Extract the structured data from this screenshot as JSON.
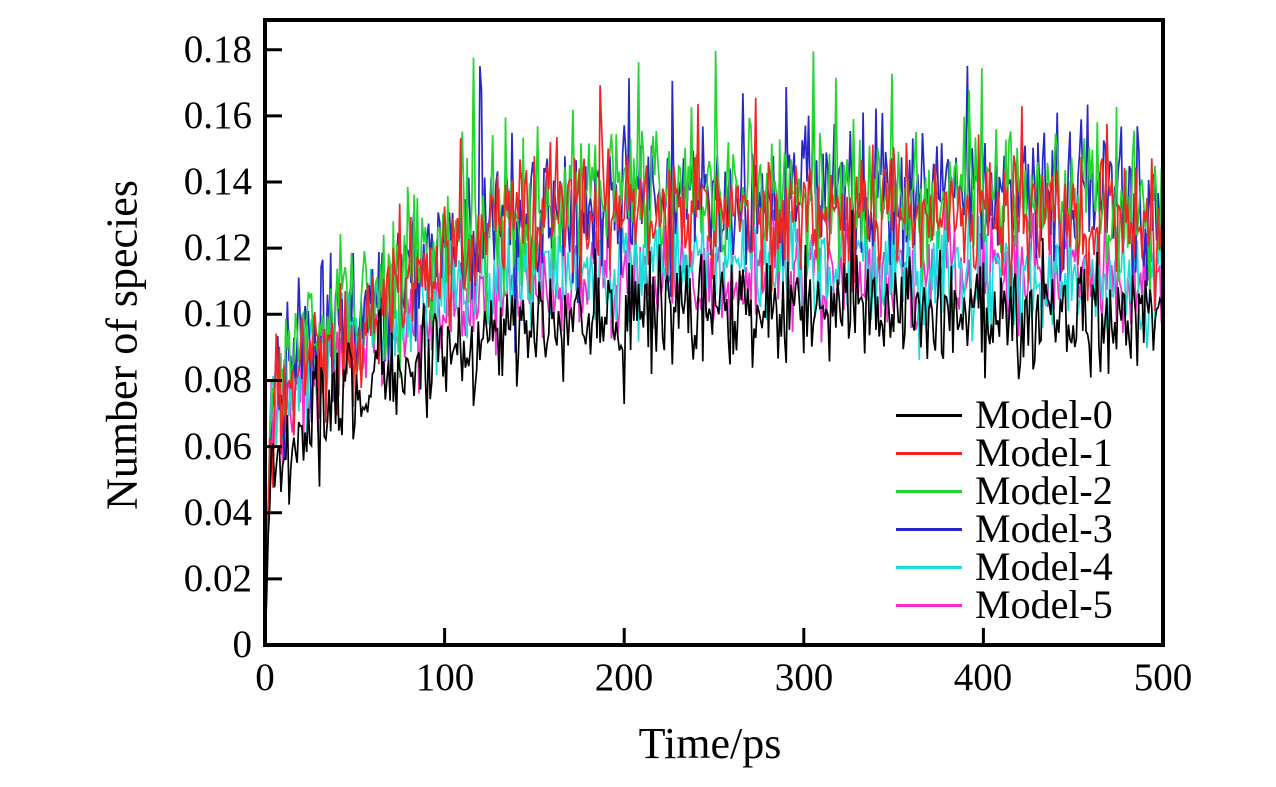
{
  "chart_data": {
    "type": "line",
    "title": "",
    "xlabel": "Time/ps",
    "ylabel": "Number of species",
    "xlim": [
      0,
      500
    ],
    "ylim": [
      0,
      0.189
    ],
    "xticks": [
      0,
      100,
      200,
      300,
      400,
      500
    ],
    "xtick_labels": [
      "0",
      "100",
      "200",
      "300",
      "400",
      "500"
    ],
    "yticks": [
      0,
      0.02,
      0.04,
      0.06,
      0.08,
      0.1,
      0.12,
      0.14,
      0.16,
      0.18
    ],
    "ytick_labels": [
      "0",
      "0.02",
      "0.04",
      "0.06",
      "0.08",
      "0.10",
      "0.12",
      "0.14",
      "0.16",
      "0.18"
    ],
    "grid": false,
    "frame": "box",
    "tick_direction": "in",
    "axis_color": "#000000",
    "legend_position": "inside-bottom-right",
    "description": "Noisy MD trajectories: all series jump from 0 to ~0.05-0.08 within ~3 ps, then rise to stable noisy plateaus by ~150 ps",
    "sampling": {
      "points": 560
    },
    "draw_order": "reversed-so-first-series-on-top",
    "series": [
      {
        "name": "Model-0",
        "color": "#000000",
        "seed": 137,
        "noise_sigma": 0.0085,
        "spike_prob": 0.03,
        "spike_gain": 2.0,
        "plateau": 0.1,
        "profile_t": [
          0,
          3,
          10,
          25,
          50,
          100,
          150,
          200,
          250,
          300,
          350,
          400,
          450,
          500
        ],
        "profile_v": [
          0,
          0.05,
          0.06,
          0.068,
          0.077,
          0.088,
          0.097,
          0.099,
          0.1,
          0.102,
          0.101,
          0.1,
          0.099,
          0.1
        ]
      },
      {
        "name": "Model-1",
        "color": "#F22525",
        "seed": 211,
        "noise_sigma": 0.0095,
        "spike_prob": 0.035,
        "spike_gain": 2.1,
        "plateau": 0.13,
        "profile_t": [
          0,
          3,
          10,
          25,
          50,
          100,
          150,
          200,
          250,
          300,
          350,
          400,
          450,
          500
        ],
        "profile_v": [
          0,
          0.068,
          0.077,
          0.083,
          0.093,
          0.118,
          0.132,
          0.13,
          0.131,
          0.13,
          0.131,
          0.13,
          0.128,
          0.126
        ]
      },
      {
        "name": "Model-2",
        "color": "#23D52F",
        "seed": 311,
        "noise_sigma": 0.0105,
        "spike_prob": 0.045,
        "spike_gain": 2.2,
        "plateau": 0.137,
        "profile_t": [
          0,
          3,
          10,
          25,
          50,
          100,
          150,
          200,
          250,
          300,
          350,
          400,
          450,
          500
        ],
        "profile_v": [
          0,
          0.075,
          0.086,
          0.095,
          0.106,
          0.122,
          0.132,
          0.137,
          0.138,
          0.138,
          0.137,
          0.138,
          0.136,
          0.131
        ]
      },
      {
        "name": "Model-3",
        "color": "#2828C8",
        "seed": 419,
        "noise_sigma": 0.0105,
        "spike_prob": 0.045,
        "spike_gain": 2.2,
        "plateau": 0.136,
        "profile_t": [
          0,
          3,
          10,
          25,
          50,
          100,
          150,
          200,
          250,
          300,
          350,
          400,
          450,
          500
        ],
        "profile_v": [
          0,
          0.068,
          0.082,
          0.091,
          0.102,
          0.12,
          0.13,
          0.134,
          0.136,
          0.138,
          0.137,
          0.138,
          0.137,
          0.134
        ]
      },
      {
        "name": "Model-4",
        "color": "#18DEDB",
        "seed": 523,
        "noise_sigma": 0.0085,
        "spike_prob": 0.03,
        "spike_gain": 1.9,
        "plateau": 0.114,
        "profile_t": [
          0,
          3,
          10,
          25,
          50,
          100,
          150,
          200,
          250,
          300,
          350,
          400,
          450,
          500
        ],
        "profile_v": [
          0,
          0.065,
          0.076,
          0.085,
          0.095,
          0.106,
          0.112,
          0.115,
          0.115,
          0.114,
          0.113,
          0.112,
          0.109,
          0.108
        ]
      },
      {
        "name": "Model-5",
        "color": "#F32BD1",
        "seed": 631,
        "noise_sigma": 0.0085,
        "spike_prob": 0.03,
        "spike_gain": 1.9,
        "plateau": 0.111,
        "profile_t": [
          0,
          3,
          10,
          25,
          50,
          100,
          150,
          200,
          250,
          300,
          350,
          400,
          450,
          500
        ],
        "profile_v": [
          0,
          0.065,
          0.074,
          0.082,
          0.091,
          0.101,
          0.108,
          0.11,
          0.112,
          0.113,
          0.112,
          0.112,
          0.111,
          0.11
        ]
      }
    ]
  }
}
